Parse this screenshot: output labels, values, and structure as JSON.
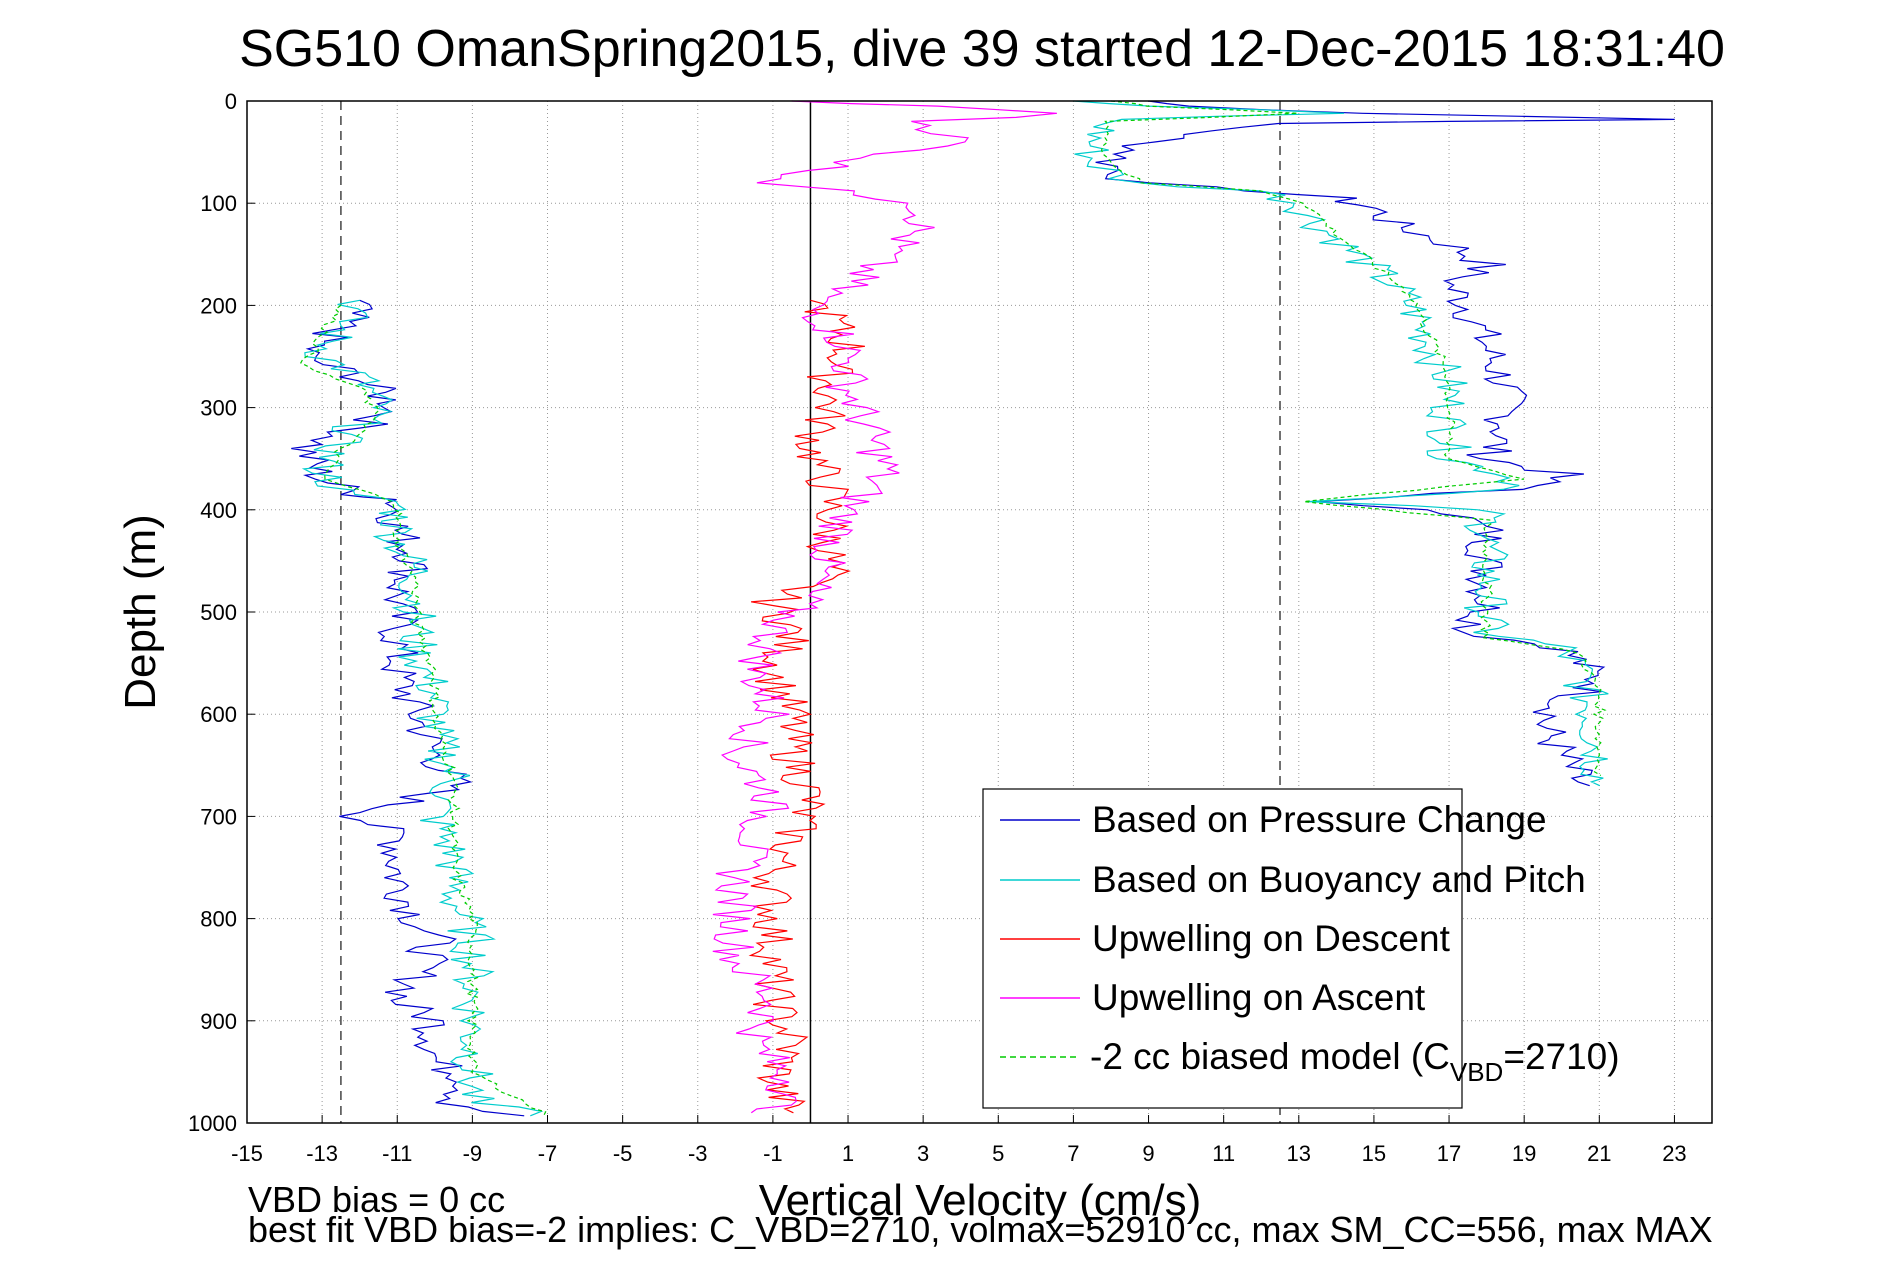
{
  "chart_data": {
    "type": "line",
    "title": "SG510 OmanSpring2015, dive 39 started 12-Dec-2015 18:31:40",
    "xlabel": "Vertical Velocity (cm/s)",
    "ylabel": "Depth (m)",
    "xlim": [
      -15,
      24
    ],
    "ylim": [
      0,
      1000
    ],
    "y_reversed": true,
    "grid": true,
    "legend_position": "bottom-right",
    "x_ticks": [
      "-15",
      "-13",
      "-11",
      "-9",
      "-7",
      "-5",
      "-3",
      "-1",
      "1",
      "3",
      "5",
      "7",
      "9",
      "11",
      "13",
      "15",
      "17",
      "19",
      "21",
      "23"
    ],
    "y_ticks": [
      "0",
      "100",
      "200",
      "300",
      "400",
      "500",
      "600",
      "700",
      "800",
      "900",
      "1000"
    ],
    "reference_lines": {
      "solid_x": 0,
      "dashed_x": [
        -12.5,
        12.5
      ]
    },
    "legend": {
      "items": [
        {
          "label": "Based on Pressure Change",
          "color": "#0000cc",
          "dash": "solid"
        },
        {
          "label": "Based on Buoyancy and Pitch",
          "color": "#00cccc",
          "dash": "solid"
        },
        {
          "label": "Upwelling on Descent",
          "color": "#ff0000",
          "dash": "solid"
        },
        {
          "label": "Upwelling on Ascent",
          "color": "#ff00ff",
          "dash": "solid"
        },
        {
          "label_main": "-2 cc biased model (C",
          "label_sub": "VBD",
          "label_tail": "=2710)",
          "color": "#00cc00",
          "dash": "dashed"
        }
      ]
    },
    "footer": {
      "line1": "VBD bias = 0 cc",
      "line2": "best fit VBD bias=-2 implies: C_VBD=2710, volmax=52910 cc, max SM_CC=556, max MAX"
    },
    "series": [
      {
        "name": "Based on Pressure Change",
        "color": "#0000cc",
        "points": [
          [
            9,
            0
          ],
          [
            10,
            5
          ],
          [
            15,
            12
          ],
          [
            23,
            18
          ],
          [
            12,
            22
          ],
          [
            9,
            40
          ],
          [
            8,
            60
          ],
          [
            8.5,
            80
          ],
          [
            12,
            88
          ],
          [
            14,
            95
          ],
          [
            15,
            105
          ],
          [
            15.5,
            120
          ],
          [
            17,
            140
          ],
          [
            18,
            160
          ],
          [
            17,
            180
          ],
          [
            17.5,
            200
          ],
          [
            18,
            240
          ],
          [
            18.5,
            280
          ],
          [
            18.5,
            320
          ],
          [
            18,
            350
          ],
          [
            20,
            365
          ],
          [
            19,
            380
          ],
          [
            13,
            392
          ],
          [
            17,
            400
          ],
          [
            18,
            420
          ],
          [
            18,
            460
          ],
          [
            18,
            500
          ],
          [
            17.5,
            520
          ],
          [
            20,
            535
          ],
          [
            20.5,
            550
          ],
          [
            21,
            570
          ],
          [
            20,
            590
          ],
          [
            19.5,
            610
          ],
          [
            20,
            640
          ],
          [
            20.5,
            670
          ],
          [
            -12,
            195
          ],
          [
            -12.5,
            220
          ],
          [
            -13.5,
            250
          ],
          [
            -12,
            270
          ],
          [
            -11,
            300
          ],
          [
            -12,
            320
          ],
          [
            -13.5,
            340
          ],
          [
            -13,
            370
          ],
          [
            -12,
            385
          ],
          [
            -11,
            390
          ],
          [
            -11,
            420
          ],
          [
            -10.5,
            450
          ],
          [
            -11,
            480
          ],
          [
            -11,
            520
          ],
          [
            -11,
            560
          ],
          [
            -10.5,
            600
          ],
          [
            -10,
            640
          ],
          [
            -9.5,
            670
          ],
          [
            -12,
            700
          ],
          [
            -11,
            720
          ],
          [
            -11,
            760
          ],
          [
            -10.5,
            800
          ],
          [
            -10,
            820
          ],
          [
            -10.5,
            860
          ],
          [
            -11,
            880
          ],
          [
            -10,
            900
          ],
          [
            -10,
            940
          ],
          [
            -9,
            960
          ],
          [
            -9.5,
            980
          ],
          [
            -8,
            993
          ]
        ]
      },
      {
        "name": "Based on Buoyancy and Pitch",
        "color": "#00cccc",
        "points": [
          [
            7,
            0
          ],
          [
            9,
            5
          ],
          [
            14,
            12
          ],
          [
            8,
            18
          ],
          [
            7.5,
            40
          ],
          [
            7.5,
            60
          ],
          [
            8.5,
            80
          ],
          [
            12,
            88
          ],
          [
            13,
            100
          ],
          [
            13.5,
            120
          ],
          [
            14.5,
            150
          ],
          [
            15.5,
            180
          ],
          [
            16,
            200
          ],
          [
            16.5,
            240
          ],
          [
            17,
            280
          ],
          [
            17,
            320
          ],
          [
            17,
            350
          ],
          [
            18.5,
            365
          ],
          [
            19,
            380
          ],
          [
            13,
            392
          ],
          [
            18,
            400
          ],
          [
            18,
            440
          ],
          [
            18,
            480
          ],
          [
            18,
            520
          ],
          [
            20,
            535
          ],
          [
            20.5,
            560
          ],
          [
            20.8,
            600
          ],
          [
            21,
            640
          ],
          [
            21,
            670
          ],
          [
            -12,
            195
          ],
          [
            -12.5,
            220
          ],
          [
            -13,
            250
          ],
          [
            -12,
            270
          ],
          [
            -11.5,
            300
          ],
          [
            -12.5,
            330
          ],
          [
            -13,
            360
          ],
          [
            -12.5,
            385
          ],
          [
            -11,
            392
          ],
          [
            -11,
            430
          ],
          [
            -10.5,
            460
          ],
          [
            -10.5,
            500
          ],
          [
            -10.5,
            540
          ],
          [
            -10,
            580
          ],
          [
            -10,
            620
          ],
          [
            -9.5,
            660
          ],
          [
            -10,
            700
          ],
          [
            -9.5,
            740
          ],
          [
            -9.5,
            780
          ],
          [
            -9,
            820
          ],
          [
            -9,
            860
          ],
          [
            -9,
            900
          ],
          [
            -9,
            940
          ],
          [
            -9,
            980
          ],
          [
            -7,
            993
          ]
        ]
      },
      {
        "name": "Upwelling on Descent",
        "color": "#ff0000",
        "points": [
          [
            0,
            195
          ],
          [
            0.5,
            210
          ],
          [
            1,
            240
          ],
          [
            0.5,
            270
          ],
          [
            0.5,
            300
          ],
          [
            0,
            340
          ],
          [
            0.5,
            380
          ],
          [
            0.5,
            420
          ],
          [
            0.5,
            460
          ],
          [
            -1,
            490
          ],
          [
            -0.5,
            520
          ],
          [
            -1,
            560
          ],
          [
            -0.5,
            600
          ],
          [
            -0.5,
            640
          ],
          [
            0,
            680
          ],
          [
            -0.5,
            720
          ],
          [
            -1,
            760
          ],
          [
            -1,
            800
          ],
          [
            -1,
            840
          ],
          [
            -1,
            880
          ],
          [
            -0.5,
            920
          ],
          [
            -1,
            960
          ],
          [
            -0.5,
            990
          ]
        ]
      },
      {
        "name": "Upwelling on Ascent",
        "color": "#ff00ff",
        "points": [
          [
            -0.5,
            0
          ],
          [
            3,
            5
          ],
          [
            7,
            12
          ],
          [
            3,
            20
          ],
          [
            4,
            40
          ],
          [
            1,
            60
          ],
          [
            -1,
            80
          ],
          [
            3,
            100
          ],
          [
            3,
            120
          ],
          [
            2,
            150
          ],
          [
            1,
            180
          ],
          [
            0,
            200
          ],
          [
            1,
            240
          ],
          [
            1,
            280
          ],
          [
            1.5,
            320
          ],
          [
            2,
            360
          ],
          [
            1,
            400
          ],
          [
            0.5,
            440
          ],
          [
            0,
            480
          ],
          [
            -1,
            520
          ],
          [
            -1.5,
            560
          ],
          [
            -1,
            600
          ],
          [
            -2,
            640
          ],
          [
            -1,
            680
          ],
          [
            -1.5,
            720
          ],
          [
            -2,
            760
          ],
          [
            -2,
            800
          ],
          [
            -2,
            840
          ],
          [
            -1,
            880
          ],
          [
            -1.5,
            920
          ],
          [
            -0.5,
            960
          ],
          [
            -1,
            990
          ]
        ]
      },
      {
        "name": "-2 cc biased model (CVBD=2710)",
        "color": "#00cc00",
        "dashed": true,
        "points": [
          [
            8,
            0
          ],
          [
            9,
            5
          ],
          [
            13,
            12
          ],
          [
            8,
            20
          ],
          [
            7.8,
            40
          ],
          [
            8,
            60
          ],
          [
            8.8,
            80
          ],
          [
            12,
            88
          ],
          [
            13.2,
            100
          ],
          [
            14,
            130
          ],
          [
            15,
            160
          ],
          [
            16,
            190
          ],
          [
            16.5,
            230
          ],
          [
            17,
            270
          ],
          [
            17,
            310
          ],
          [
            17,
            350
          ],
          [
            19,
            370
          ],
          [
            13,
            392
          ],
          [
            18,
            410
          ],
          [
            18,
            450
          ],
          [
            18,
            490
          ],
          [
            18,
            525
          ],
          [
            20.5,
            540
          ],
          [
            21,
            580
          ],
          [
            21,
            620
          ],
          [
            21,
            660
          ],
          [
            -12.5,
            200
          ],
          [
            -13,
            230
          ],
          [
            -13.5,
            260
          ],
          [
            -12,
            280
          ],
          [
            -11.5,
            310
          ],
          [
            -12.5,
            340
          ],
          [
            -13,
            370
          ],
          [
            -11,
            392
          ],
          [
            -11,
            430
          ],
          [
            -10.5,
            470
          ],
          [
            -10.5,
            510
          ],
          [
            -10,
            560
          ],
          [
            -10,
            610
          ],
          [
            -9.5,
            660
          ],
          [
            -9.5,
            700
          ],
          [
            -9.5,
            750
          ],
          [
            -9,
            800
          ],
          [
            -9,
            850
          ],
          [
            -9,
            900
          ],
          [
            -9,
            950
          ],
          [
            -7,
            993
          ]
        ]
      }
    ]
  }
}
